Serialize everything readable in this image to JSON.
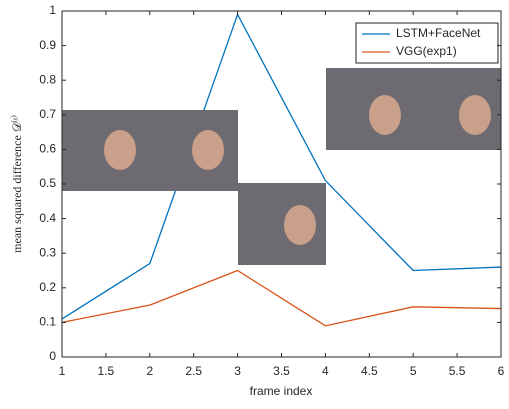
{
  "chart_data": {
    "type": "line",
    "x_label": "frame index",
    "y_label": "mean squared difference 𝒟⁽ᵗ⁾",
    "x": [
      1,
      2,
      3,
      4,
      5,
      6
    ],
    "series": [
      {
        "name": "LSTM+FaceNet",
        "color": "#0072bd",
        "values": [
          0.11,
          0.27,
          0.99,
          0.51,
          0.25,
          0.26
        ]
      },
      {
        "name": "VGG(exp1)",
        "color": "#d95319",
        "values": [
          0.1,
          0.15,
          0.25,
          0.09,
          0.145,
          0.14
        ]
      }
    ],
    "xlim": [
      1,
      6
    ],
    "xticks": [
      1,
      1.5,
      2,
      2.5,
      3,
      3.5,
      4,
      4.5,
      5,
      5.5,
      6
    ],
    "ylim": [
      0,
      1
    ],
    "yticks": [
      0,
      0.1,
      0.2,
      0.3,
      0.4,
      0.5,
      0.6,
      0.7,
      0.8,
      0.9,
      1
    ],
    "grid": false,
    "legend": "top-right"
  }
}
